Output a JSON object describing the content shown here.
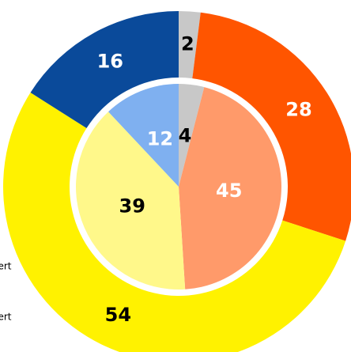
{
  "chart_data": {
    "type": "nested-donut",
    "rings": [
      {
        "values": [
          2,
          28,
          54,
          16
        ],
        "colors": [
          "#c8c8c8",
          "#ff5500",
          "#fff200",
          "#0a4a9a"
        ],
        "label_colors": [
          "#000000",
          "#ffffff",
          "#000000",
          "#ffffff"
        ]
      },
      {
        "values": [
          4,
          45,
          39,
          12
        ],
        "colors": [
          "#c8c8c8",
          "#ff9a6a",
          "#fff88a",
          "#7fb0f0"
        ],
        "label_colors": [
          "#000000",
          "#ffffff",
          "#000000",
          "#ffffff"
        ]
      }
    ],
    "annotations": [
      "ert",
      "ert"
    ]
  }
}
